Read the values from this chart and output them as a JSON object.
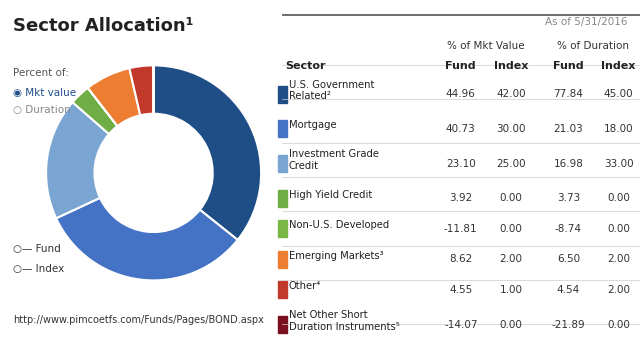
{
  "title": "Sector Allocation¹",
  "date_label": "As of 5/31/2016",
  "url": "http://www.pimcoetfs.com/Funds/Pages/BOND.aspx",
  "percent_of_label": "Percent of:",
  "mkt_value_label": "Mkt value",
  "duration_label": "Duration",
  "fund_label": "Fund",
  "index_label": "Index",
  "col_header_mkt": "% of Mkt Value",
  "col_header_dur": "% of Duration",
  "col_fund": "Fund",
  "col_index": "Index",
  "col_fund2": "Fund",
  "col_index2": "Index",
  "sectors": [
    {
      "name": "U.S. Government\nRelated²",
      "color": "#1f4e87",
      "fund_mkt": 44.96,
      "idx_mkt": 42.0,
      "fund_dur": 77.84,
      "idx_dur": 45.0,
      "slice": 44.96
    },
    {
      "name": "Mortgage",
      "color": "#4472c4",
      "fund_mkt": 40.73,
      "idx_mkt": 30.0,
      "fund_dur": 21.03,
      "idx_dur": 18.0,
      "slice": 40.73
    },
    {
      "name": "Investment Grade\nCredit",
      "color": "#7aa5d2",
      "fund_mkt": 23.1,
      "idx_mkt": 25.0,
      "fund_dur": 16.98,
      "idx_dur": 33.0,
      "slice": 23.1
    },
    {
      "name": "High Yield Credit",
      "color": "#70ad47",
      "fund_mkt": 3.92,
      "idx_mkt": 0.0,
      "fund_dur": 3.73,
      "idx_dur": 0.0,
      "slice": 3.92
    },
    {
      "name": "Non-U.S. Developed",
      "color": "#7ab648",
      "fund_mkt": -11.81,
      "idx_mkt": 0.0,
      "fund_dur": -8.74,
      "idx_dur": 0.0,
      "slice": 0.01
    },
    {
      "name": "Emerging Markets³",
      "color": "#ed7d31",
      "fund_mkt": 8.62,
      "idx_mkt": 2.0,
      "fund_dur": 6.5,
      "idx_dur": 2.0,
      "slice": 8.62
    },
    {
      "name": "Other⁴",
      "color": "#c0392b",
      "fund_mkt": 4.55,
      "idx_mkt": 1.0,
      "fund_dur": 4.54,
      "idx_dur": 2.0,
      "slice": 4.55
    },
    {
      "name": "Net Other Short\nDuration Instruments⁵",
      "color": "#7b1020",
      "fund_mkt": -14.07,
      "idx_mkt": 0.0,
      "fund_dur": -21.89,
      "idx_dur": 0.0,
      "slice": 0.01
    }
  ],
  "background_color": "#ffffff",
  "table_header_color": "#333333",
  "table_row_line_color": "#cccccc"
}
